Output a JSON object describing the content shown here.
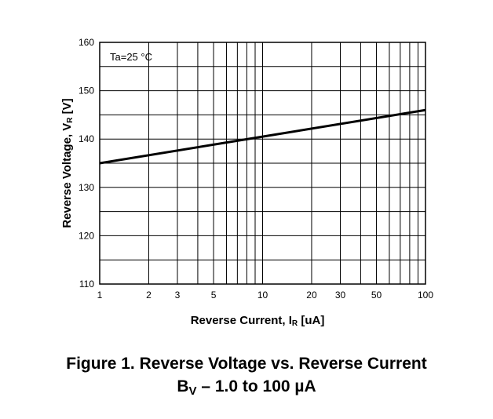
{
  "chart_data": {
    "type": "line",
    "x_scale": "log",
    "xlim": [
      1,
      100
    ],
    "ylim": [
      110,
      160
    ],
    "x_ticks": [
      {
        "value": 1,
        "label": "1"
      },
      {
        "value": 2,
        "label": "2"
      },
      {
        "value": 3,
        "label": "3"
      },
      {
        "value": 5,
        "label": "5"
      },
      {
        "value": 10,
        "label": "10"
      },
      {
        "value": 20,
        "label": "20"
      },
      {
        "value": 30,
        "label": "30"
      },
      {
        "value": 50,
        "label": "50"
      },
      {
        "value": 100,
        "label": "100"
      }
    ],
    "x_minor_gridlines": [
      4,
      6,
      7,
      8,
      9,
      40,
      60,
      70,
      80,
      90
    ],
    "y_ticks": [
      {
        "value": 110,
        "label": "110"
      },
      {
        "value": 120,
        "label": "120"
      },
      {
        "value": 130,
        "label": "130"
      },
      {
        "value": 140,
        "label": "140"
      },
      {
        "value": 150,
        "label": "150"
      },
      {
        "value": 160,
        "label": "160"
      }
    ],
    "y_minor_gridlines": [
      115,
      125,
      135,
      145,
      155
    ],
    "grid": true,
    "series": [
      {
        "x": [
          1,
          10,
          100
        ],
        "y": [
          135,
          140.5,
          146
        ],
        "color": "#000000"
      }
    ],
    "annotation": {
      "text": "Ta=25 °C",
      "position": "top-left"
    },
    "xlabel": {
      "main": "Reverse Current, I",
      "sub": "R",
      "unit": " [uA]"
    },
    "ylabel": {
      "main": "Reverse Voltage, V",
      "sub": "R",
      "unit": " [V]"
    }
  },
  "caption": {
    "line1": "Figure 1. Reverse Voltage vs. Reverse Current",
    "line2_main": "B",
    "line2_sub": "V",
    "line2_rest": " – 1.0 to 100 µA"
  }
}
